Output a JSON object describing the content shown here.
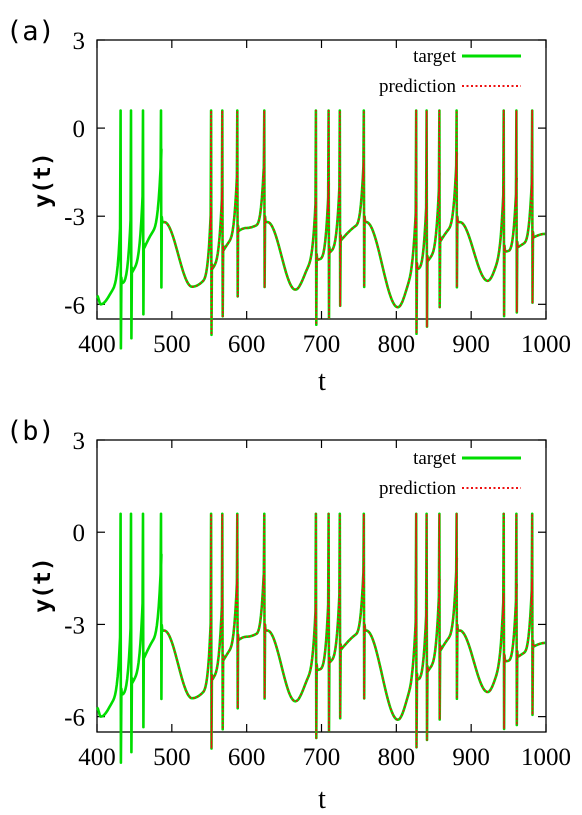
{
  "chart_data": [
    {
      "panel": "(a)",
      "type": "line",
      "xlabel": "t",
      "ylabel": "y(t)",
      "xlim": [
        400,
        1000
      ],
      "ylim": [
        -6.5,
        3
      ],
      "xticks": [
        400,
        500,
        600,
        700,
        800,
        900,
        1000
      ],
      "yticks": [
        3,
        0,
        -3,
        -6
      ],
      "legend_position": "top-right",
      "series": [
        {
          "name": "target",
          "color": "#00dd00",
          "style": "solid"
        },
        {
          "name": "prediction",
          "color": "#ee1111",
          "style": "dotted",
          "x_start": 490
        }
      ],
      "spike_times": [
        432,
        446,
        462,
        486,
        553,
        568,
        588,
        624,
        693,
        710,
        725,
        757,
        827,
        841,
        858,
        881,
        944,
        961,
        982
      ],
      "minima": [
        {
          "t": 405,
          "y": -6.0
        },
        {
          "t": 527,
          "y": -5.4
        },
        {
          "t": 665,
          "y": -5.5
        },
        {
          "t": 802,
          "y": -6.1
        },
        {
          "t": 922,
          "y": -5.2
        }
      ]
    },
    {
      "panel": "(b)",
      "type": "line",
      "xlabel": "t",
      "ylabel": "y(t)",
      "xlim": [
        400,
        1000
      ],
      "ylim": [
        -6.5,
        3
      ],
      "xticks": [
        400,
        500,
        600,
        700,
        800,
        900,
        1000
      ],
      "yticks": [
        3,
        0,
        -3,
        -6
      ],
      "legend_position": "top-right",
      "series": [
        {
          "name": "target",
          "color": "#00dd00",
          "style": "solid"
        },
        {
          "name": "prediction",
          "color": "#ee1111",
          "style": "dotted",
          "x_start": 490
        }
      ],
      "spike_times": [
        432,
        446,
        462,
        486,
        553,
        568,
        588,
        624,
        693,
        710,
        725,
        757,
        827,
        841,
        858,
        881,
        944,
        961,
        982
      ],
      "minima": [
        {
          "t": 405,
          "y": -6.0
        },
        {
          "t": 527,
          "y": -5.4
        },
        {
          "t": 665,
          "y": -5.5
        },
        {
          "t": 802,
          "y": -6.1
        },
        {
          "t": 922,
          "y": -5.2
        }
      ]
    }
  ]
}
